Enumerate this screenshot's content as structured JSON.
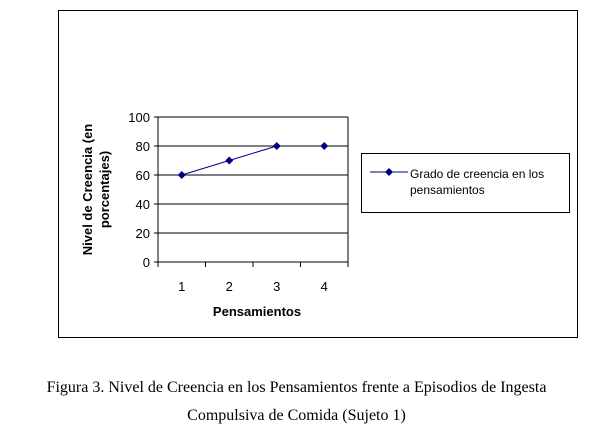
{
  "chart_data": {
    "type": "line",
    "title": "",
    "xlabel": "Pensamientos",
    "ylabel_lines": [
      "Nivel de Creencia (en",
      "porcentajes)"
    ],
    "categories": [
      "1",
      "2",
      "3",
      "4"
    ],
    "yticks": [
      "0",
      "20",
      "40",
      "60",
      "80",
      "100"
    ],
    "ylim": [
      0,
      100
    ],
    "grid": "horizontal",
    "legend_position": "right",
    "series": [
      {
        "name_lines": [
          "Grado de creencia en los",
          "pensamientos"
        ],
        "values": [
          60,
          70,
          80,
          80
        ],
        "connected": [
          true,
          true,
          false
        ],
        "color": "#000080"
      }
    ]
  },
  "caption": {
    "line1": "Figura 3. Nivel de Creencia en los Pensamientos frente a Episodios de Ingesta",
    "line2": "Compulsiva de Comida (Sujeto 1)"
  }
}
